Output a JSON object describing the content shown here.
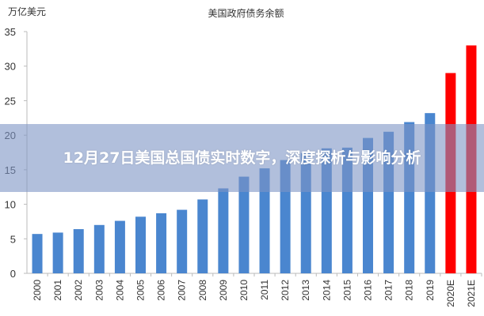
{
  "overlay_title": "12月27日美国总国债实时数字，深度探析与影响分析",
  "chart_data": {
    "type": "bar",
    "title": "美国政府债务余额",
    "ylabel": "万亿美元",
    "xlabel": "",
    "ylim": [
      0,
      35
    ],
    "yticks": [
      0,
      5,
      10,
      15,
      20,
      25,
      30,
      35
    ],
    "grid": false,
    "categories": [
      "2000",
      "2001",
      "2002",
      "2003",
      "2004",
      "2005",
      "2006",
      "2007",
      "2008",
      "2009",
      "2010",
      "2011",
      "2012",
      "2013",
      "2014",
      "2015",
      "2016",
      "2017",
      "2018",
      "2019",
      "2020E",
      "2021E"
    ],
    "values": [
      5.7,
      5.9,
      6.4,
      7.0,
      7.6,
      8.2,
      8.7,
      9.2,
      10.7,
      12.3,
      14.0,
      15.2,
      16.4,
      17.4,
      18.1,
      18.2,
      19.6,
      20.5,
      21.9,
      23.2,
      29.0,
      33.0
    ],
    "series_colors": {
      "actual": "#4a86cf",
      "estimate": "#ff0000"
    }
  }
}
